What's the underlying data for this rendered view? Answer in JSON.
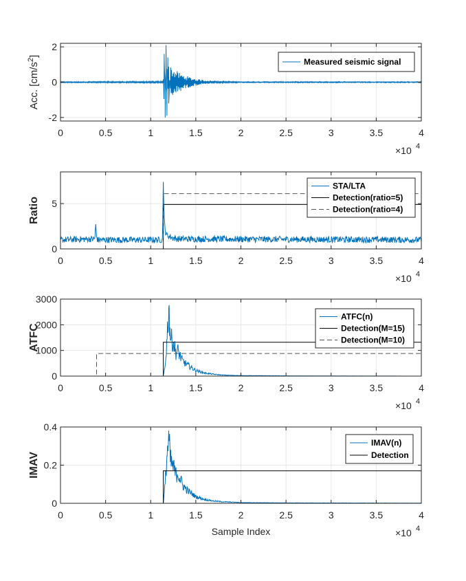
{
  "colors": {
    "signal": "#0072BD",
    "detection": "#000000",
    "detection_dashed": "#555555",
    "grid": "#e6e6e6",
    "axis": "#262626"
  },
  "chart_data": [
    {
      "type": "line",
      "ylabel_parts": [
        "Acc. [cm/s",
        "2",
        "]"
      ],
      "ylabel": "Acc. [cm/s 2 ]",
      "ylabel_bold": false,
      "ylim": [
        -2.2,
        2.2
      ],
      "yticks": [
        -2,
        0,
        2
      ],
      "ytick_labels": [
        "-2",
        "0",
        "2"
      ],
      "xlim": [
        0,
        40000
      ],
      "xticks": [
        0,
        5000,
        10000,
        15000,
        20000,
        25000,
        30000,
        35000,
        40000
      ],
      "xtick_labels": [
        "0",
        "0.5",
        "1",
        "1.5",
        "2",
        "2.5",
        "3",
        "3.5",
        "4"
      ],
      "x_exponent_label": "×10",
      "x_exponent_power": "4",
      "grid": true,
      "legend_placement": "top-right",
      "series": [
        {
          "name": "Measured seismic signal",
          "style": "solid-blue",
          "x": [
            0,
            11400,
            11500,
            11600,
            11700,
            11800,
            11900,
            12000,
            12200,
            12500,
            13000,
            13500,
            14000,
            15000,
            16000,
            17000,
            18000,
            20000,
            25000,
            30000,
            35000,
            40000
          ],
          "y": [
            0.03,
            0.05,
            1.6,
            -2.0,
            2.1,
            -1.9,
            1.4,
            -1.2,
            1.0,
            0.8,
            0.6,
            0.45,
            0.35,
            0.2,
            0.12,
            0.08,
            0.05,
            0.03,
            0.03,
            0.03,
            0.03,
            0.03
          ]
        }
      ]
    },
    {
      "type": "line",
      "ylabel": "Ratio",
      "ylabel_bold": true,
      "ylim": [
        0,
        8.5
      ],
      "yticks": [
        0,
        5
      ],
      "ytick_labels": [
        "0",
        "5"
      ],
      "xlim": [
        0,
        40000
      ],
      "xticks": [
        0,
        5000,
        10000,
        15000,
        20000,
        25000,
        30000,
        35000,
        40000
      ],
      "xtick_labels": [
        "0",
        "0.5",
        "1",
        "1.5",
        "2",
        "2.5",
        "3",
        "3.5",
        "4"
      ],
      "x_exponent_label": "×10",
      "x_exponent_power": "4",
      "grid": true,
      "legend_placement": "top-right",
      "series": [
        {
          "name": "STA/LTA",
          "style": "solid-blue",
          "x": [
            0,
            3800,
            3900,
            4000,
            4100,
            11300,
            11400,
            11500,
            11600,
            11800,
            12000,
            12500,
            13000,
            40000
          ],
          "y": [
            1.0,
            1.1,
            2.7,
            1.4,
            1.0,
            1.0,
            7.4,
            3.2,
            2.0,
            1.5,
            1.4,
            1.2,
            1.1,
            1.0
          ]
        },
        {
          "name": "Detection(ratio=5)",
          "style": "solid-black",
          "x": [
            0,
            11400,
            11400,
            40000
          ],
          "y": [
            0,
            0,
            4.9,
            4.9
          ]
        },
        {
          "name": "Detection(ratio=4)",
          "style": "dashed-gray",
          "x": [
            0,
            11400,
            11400,
            40000
          ],
          "y": [
            0,
            0,
            6.1,
            6.1
          ]
        }
      ]
    },
    {
      "type": "line",
      "ylabel": "ATFC",
      "ylabel_bold": true,
      "ylim": [
        0,
        3000
      ],
      "yticks": [
        0,
        1000,
        2000,
        3000
      ],
      "ytick_labels": [
        "0",
        "1000",
        "2000",
        "3000"
      ],
      "xlim": [
        0,
        40000
      ],
      "xticks": [
        0,
        5000,
        10000,
        15000,
        20000,
        25000,
        30000,
        35000,
        40000
      ],
      "xtick_labels": [
        "0",
        "0.5",
        "1",
        "1.5",
        "2",
        "2.5",
        "3",
        "3.5",
        "4"
      ],
      "x_exponent_label": "×10",
      "x_exponent_power": "4",
      "grid": true,
      "legend_placement": "top-right",
      "series": [
        {
          "name": "ATFC(n)",
          "style": "solid-blue",
          "x": [
            0,
            11400,
            11600,
            11800,
            12000,
            12200,
            12500,
            12800,
            13000,
            13500,
            14000,
            15000,
            16000,
            17000,
            18000,
            20000,
            25000,
            30000,
            40000
          ],
          "y": [
            0,
            0,
            400,
            1400,
            2650,
            1500,
            1300,
            900,
            1000,
            600,
            450,
            220,
            120,
            70,
            40,
            20,
            10,
            5,
            0
          ]
        },
        {
          "name": "Detection(M=15)",
          "style": "solid-black",
          "x": [
            0,
            11400,
            11400,
            40000
          ],
          "y": [
            0,
            0,
            1320,
            1320
          ]
        },
        {
          "name": "Detection(M=10)",
          "style": "dashed-gray",
          "x": [
            0,
            4000,
            4000,
            40000
          ],
          "y": [
            0,
            0,
            880,
            880
          ]
        }
      ]
    },
    {
      "type": "line",
      "ylabel": "IMAV",
      "ylabel_bold": true,
      "xlabel": "Sample Index",
      "ylim": [
        0,
        0.4
      ],
      "yticks": [
        0,
        0.2,
        0.4
      ],
      "ytick_labels": [
        "0",
        "0.2",
        "0.4"
      ],
      "xlim": [
        0,
        40000
      ],
      "xticks": [
        0,
        5000,
        10000,
        15000,
        20000,
        25000,
        30000,
        35000,
        40000
      ],
      "xtick_labels": [
        "0",
        "0.5",
        "1",
        "1.5",
        "2",
        "2.5",
        "3",
        "3.5",
        "4"
      ],
      "x_exponent_label": "×10",
      "x_exponent_power": "4",
      "grid": true,
      "legend_placement": "top-right",
      "series": [
        {
          "name": "IMAV(n)",
          "style": "solid-blue",
          "x": [
            0,
            11400,
            11600,
            11800,
            12000,
            12200,
            12500,
            12800,
            13000,
            13500,
            14000,
            15000,
            16000,
            17000,
            18000,
            20000,
            25000,
            40000
          ],
          "y": [
            0,
            0,
            0.1,
            0.25,
            0.335,
            0.22,
            0.19,
            0.15,
            0.16,
            0.1,
            0.07,
            0.035,
            0.02,
            0.012,
            0.008,
            0.004,
            0.002,
            0.001
          ]
        },
        {
          "name": "Detection",
          "style": "solid-black",
          "x": [
            0,
            11400,
            11400,
            40000
          ],
          "y": [
            0,
            0,
            0.17,
            0.17
          ]
        }
      ]
    }
  ]
}
